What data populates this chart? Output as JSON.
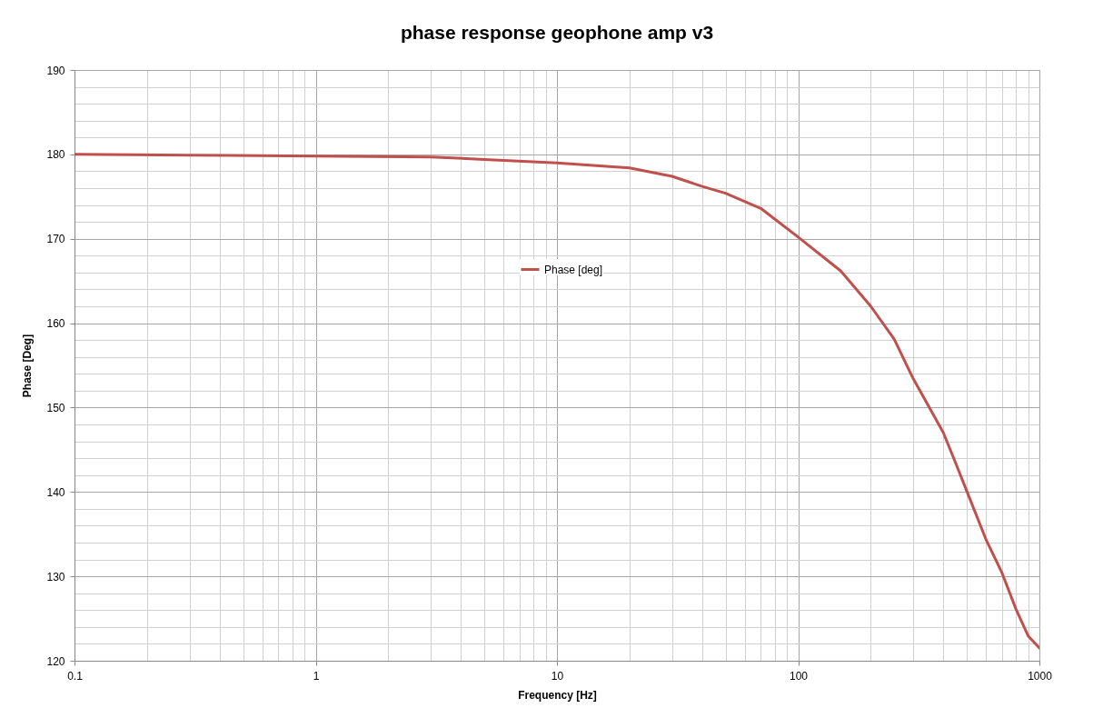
{
  "chart_data": {
    "type": "line",
    "title": "phase response geophone amp v3",
    "xlabel": "Frequency [Hz]",
    "ylabel": "Phase [Deg]",
    "log": "x",
    "grid": true,
    "legend": "top",
    "marker": "none",
    "line_style": "solid",
    "xlim": [
      0.1,
      1000
    ],
    "xticks": [
      0.1,
      1,
      10,
      100,
      1000
    ],
    "ylim": [
      120,
      190
    ],
    "yticks": [
      120,
      130,
      140,
      150,
      160,
      170,
      180,
      190
    ],
    "series": [
      {
        "name": "Phase [deg]",
        "color": "#c0504d",
        "x": [
          0.1,
          0.3,
          1,
          3,
          5,
          10,
          20,
          30,
          40,
          50,
          70,
          100,
          150,
          200,
          250,
          300,
          350,
          400,
          450,
          500,
          600,
          700,
          800,
          900,
          1000
        ],
        "values": [
          180.0,
          179.9,
          179.8,
          179.7,
          179.4,
          179.0,
          178.4,
          177.4,
          176.2,
          175.4,
          173.6,
          170.2,
          166.2,
          162.0,
          158.1,
          153.4,
          150.0,
          147.0,
          143.4,
          140.1,
          134.4,
          130.4,
          126.1,
          122.9,
          121.5
        ]
      }
    ]
  }
}
